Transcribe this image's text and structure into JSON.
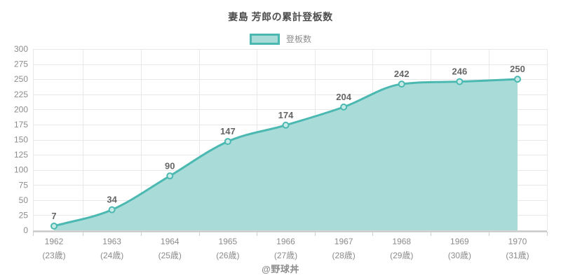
{
  "chart_data": {
    "type": "area",
    "title": "妻島 芳郎の累計登板数",
    "series": [
      {
        "name": "登板数",
        "values": [
          7,
          34,
          90,
          147,
          174,
          204,
          242,
          246,
          250
        ]
      }
    ],
    "categories": [
      "1962",
      "1963",
      "1964",
      "1965",
      "1966",
      "1967",
      "1968",
      "1969",
      "1970"
    ],
    "category_sublabels": [
      "(23歳)",
      "(24歳)",
      "(25歳)",
      "(26歳)",
      "(27歳)",
      "(28歳)",
      "(29歳)",
      "(30歳)",
      "(31歳)"
    ],
    "data_labels": [
      "7",
      "34",
      "90",
      "147",
      "174",
      "204",
      "242",
      "246",
      "250"
    ],
    "ylim": [
      0,
      300
    ],
    "ytick_step": 25,
    "grid": true,
    "legend_position": "top",
    "colors": {
      "line": "#4bb9b1",
      "fill": "#a9dcd8",
      "marker_fill": "#c9eae6",
      "data_label": "#666666",
      "axis_label": "#8c8c8c"
    }
  },
  "footer": {
    "credit": "@野球丼"
  }
}
